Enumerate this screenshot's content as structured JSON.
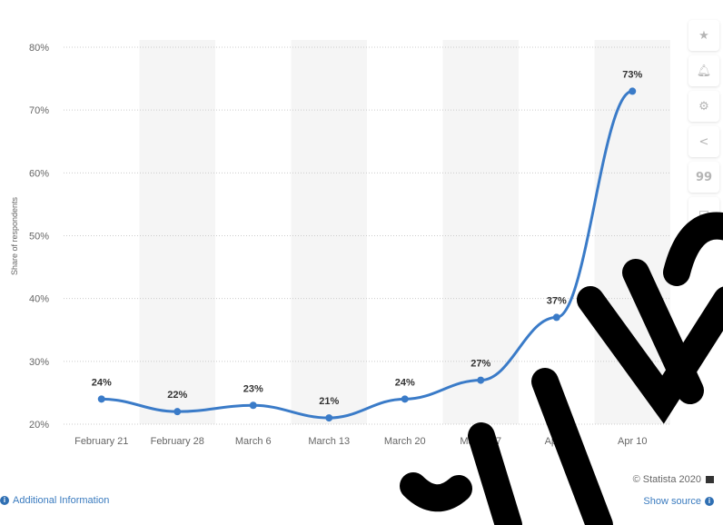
{
  "chart_data": {
    "type": "line",
    "categories": [
      "February 21",
      "February 28",
      "March 6",
      "March 13",
      "March 20",
      "March 27",
      "Apr 3",
      "Apr 10"
    ],
    "values": [
      24,
      22,
      23,
      21,
      24,
      27,
      37,
      73
    ],
    "data_labels": [
      "24%",
      "22%",
      "23%",
      "21%",
      "24%",
      "27%",
      "37%",
      "73%"
    ],
    "ylabel": "Share of respondents",
    "ylim": [
      20,
      80
    ],
    "yticks": [
      20,
      30,
      40,
      50,
      60,
      70,
      80
    ],
    "ytick_labels": [
      "20%",
      "30%",
      "40%",
      "50%",
      "60%",
      "70%",
      "80%"
    ],
    "grid": true,
    "line_color": "#3a7bc8",
    "band_color": "#f5f5f5"
  },
  "toolbar": {
    "icons": [
      "star-icon",
      "bell-icon",
      "gear-icon",
      "share-icon",
      "quote-icon",
      "print-icon"
    ]
  },
  "footer": {
    "additional_info": "Additional Information",
    "credit": "© Statista 2020",
    "show_source": "Show source"
  }
}
